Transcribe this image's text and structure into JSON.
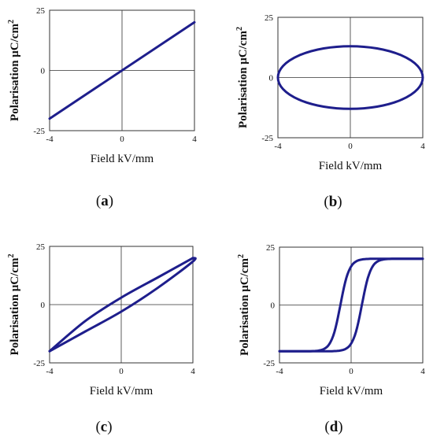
{
  "colors": {
    "curve": "#1e1e8c"
  },
  "chart_data": [
    {
      "type": "line",
      "panel": "(a)",
      "panel_letter": "a",
      "xlabel": "Field kV/mm",
      "ylabel": "Polarisation μC/cm",
      "ylabel_sup": "2",
      "xlim": [
        -4,
        4
      ],
      "ylim": [
        -25,
        25
      ],
      "xticks": [
        "-4",
        "0",
        "4"
      ],
      "yticks": [
        "25",
        "0",
        "-25"
      ],
      "grid": false,
      "series": [
        {
          "values": [
            [
              -4,
              -20
            ],
            [
              4,
              20
            ]
          ]
        }
      ]
    },
    {
      "type": "line",
      "panel": "(b)",
      "panel_letter": "b",
      "xlabel": "Field kV/mm",
      "ylabel": "Polarisation μC/cm",
      "ylabel_sup": "2",
      "xlim": [
        -4,
        4
      ],
      "ylim": [
        -25,
        25
      ],
      "xticks": [
        "-4",
        "0",
        "4"
      ],
      "yticks": [
        "25",
        "0",
        "-25"
      ],
      "grid": false,
      "series": [
        {
          "shape": "ellipse",
          "center": [
            0,
            0
          ],
          "rx": 4,
          "ry": 13
        }
      ]
    },
    {
      "type": "line",
      "panel": "(c)",
      "panel_letter": "c",
      "xlabel": "Field kV/mm",
      "ylabel": "Polarisation μC/cm",
      "ylabel_sup": "2",
      "xlim": [
        -4,
        4
      ],
      "ylim": [
        -25,
        25
      ],
      "xticks": [
        "-4",
        "0",
        "4"
      ],
      "yticks": [
        "25",
        "0",
        "-25"
      ],
      "grid": false,
      "series": [
        {
          "values": [
            [
              -4,
              -20
            ],
            [
              -2,
              -7
            ],
            [
              0,
              3
            ],
            [
              2,
              11.5
            ],
            [
              4,
              20
            ]
          ]
        },
        {
          "values": [
            [
              4,
              20
            ],
            [
              4,
              18.5
            ],
            [
              2,
              7
            ],
            [
              0,
              -3
            ],
            [
              -2,
              -11.5
            ],
            [
              -4,
              -20
            ]
          ]
        }
      ]
    },
    {
      "type": "line",
      "panel": "(d)",
      "panel_letter": "d",
      "xlabel": "Field kV/mm",
      "ylabel": "Polarisation μC/cm",
      "ylabel_sup": "2",
      "xlim": [
        -4,
        4
      ],
      "ylim": [
        -25,
        25
      ],
      "xticks": [
        "-4",
        "0",
        "4"
      ],
      "yticks": [
        "25",
        "0",
        "-25"
      ],
      "grid": false,
      "series": [
        {
          "shape": "tanh",
          "amplitude": 20,
          "shift": -0.6,
          "width": 0.5
        },
        {
          "shape": "tanh",
          "amplitude": 20,
          "shift": 0.6,
          "width": 0.5
        }
      ]
    }
  ]
}
